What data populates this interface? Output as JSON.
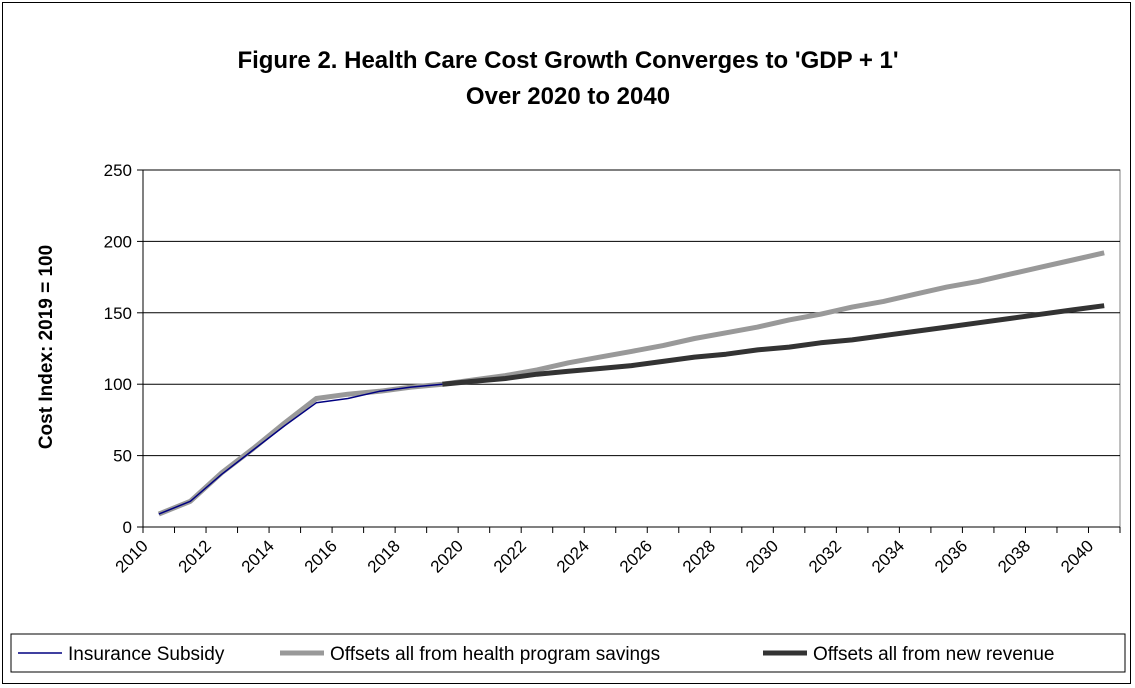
{
  "chart_data": {
    "type": "line",
    "title": [
      "Figure 2.  Health Care Cost Growth Converges to 'GDP + 1'",
      "Over 2020 to 2040"
    ],
    "xlabel": "",
    "ylabel": "Cost Index:  2019 = 100",
    "ylim": [
      0,
      250
    ],
    "yticks": [
      0,
      50,
      100,
      150,
      200,
      250
    ],
    "x": [
      2010,
      2011,
      2012,
      2013,
      2014,
      2015,
      2016,
      2017,
      2018,
      2019,
      2020,
      2021,
      2022,
      2023,
      2024,
      2025,
      2026,
      2027,
      2028,
      2029,
      2030,
      2031,
      2032,
      2033,
      2034,
      2035,
      2036,
      2037,
      2038,
      2039,
      2040
    ],
    "xtick_labels": [
      "2010",
      "2012",
      "2014",
      "2016",
      "2018",
      "2020",
      "2022",
      "2024",
      "2026",
      "2028",
      "2030",
      "2032",
      "2034",
      "2036",
      "2038",
      "2040"
    ],
    "grid": "horizontal",
    "legend_position": "bottom",
    "series": [
      {
        "name": "Insurance Subsidy",
        "color": "#000080",
        "values": [
          9,
          18,
          37,
          54,
          71,
          87,
          90,
          95,
          98,
          100,
          null,
          null,
          null,
          null,
          null,
          null,
          null,
          null,
          null,
          null,
          null,
          null,
          null,
          null,
          null,
          null,
          null,
          null,
          null,
          null,
          null
        ]
      },
      {
        "name": "Offsets all from health program savings",
        "color": "#999999",
        "values": [
          9,
          18,
          38,
          55,
          73,
          90,
          93,
          95,
          98,
          100,
          103,
          106,
          110,
          115,
          119,
          123,
          127,
          132,
          136,
          140,
          145,
          149,
          154,
          158,
          163,
          168,
          172,
          177,
          182,
          187,
          192
        ]
      },
      {
        "name": "Offsets all from new revenue",
        "color": "#333333",
        "values": [
          null,
          null,
          null,
          null,
          null,
          null,
          null,
          null,
          null,
          100,
          102,
          104,
          107,
          109,
          111,
          113,
          116,
          119,
          121,
          124,
          126,
          129,
          131,
          134,
          137,
          140,
          143,
          146,
          149,
          152,
          155
        ]
      }
    ]
  }
}
